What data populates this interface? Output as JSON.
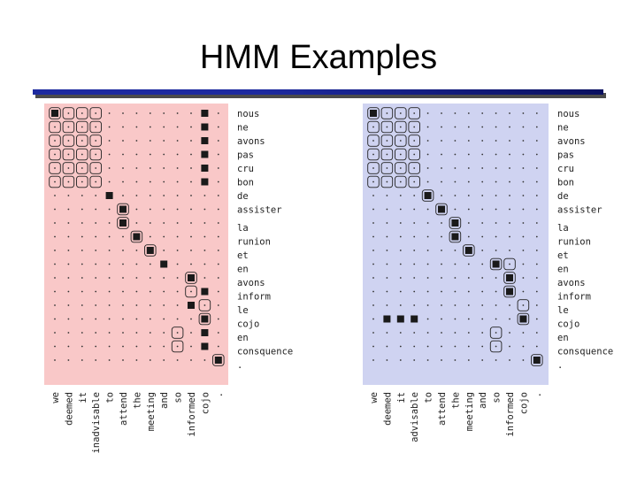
{
  "slide": {
    "title": "HMM Examples"
  },
  "colors": {
    "left_panel_bg": "#f9c8c8",
    "right_panel_bg": "#cfd3f1",
    "cell_fill": "#1a1a1a",
    "rule": "#1d2a9f"
  },
  "alignments": [
    {
      "id": "left",
      "french": [
        "nous",
        "ne",
        "avons",
        "pas",
        "cru",
        "bon",
        "de",
        "assister",
        "la",
        "runion",
        "et",
        "en",
        "avons",
        "inform",
        "le",
        "cojo",
        "en",
        "consquence",
        "."
      ],
      "english": [
        "we",
        "deemed",
        "it",
        "inadvisable",
        "to",
        "attend",
        "the",
        "meeting",
        "and",
        "so",
        "informed",
        "cojo",
        "."
      ],
      "filled": [
        [
          0,
          0
        ],
        [
          0,
          11
        ],
        [
          1,
          11
        ],
        [
          2,
          11
        ],
        [
          3,
          11
        ],
        [
          4,
          11
        ],
        [
          5,
          11
        ],
        [
          6,
          4
        ],
        [
          7,
          5
        ],
        [
          8,
          5
        ],
        [
          9,
          6
        ],
        [
          10,
          7
        ],
        [
          11,
          8
        ],
        [
          12,
          10
        ],
        [
          13,
          11
        ],
        [
          14,
          10
        ],
        [
          15,
          11
        ],
        [
          16,
          11
        ],
        [
          17,
          11
        ],
        [
          18,
          12
        ]
      ],
      "boxed": [
        [
          0,
          0
        ],
        [
          0,
          1
        ],
        [
          0,
          2
        ],
        [
          0,
          3
        ],
        [
          1,
          0
        ],
        [
          1,
          1
        ],
        [
          1,
          2
        ],
        [
          1,
          3
        ],
        [
          2,
          0
        ],
        [
          2,
          1
        ],
        [
          2,
          2
        ],
        [
          2,
          3
        ],
        [
          3,
          0
        ],
        [
          3,
          1
        ],
        [
          3,
          2
        ],
        [
          3,
          3
        ],
        [
          4,
          0
        ],
        [
          4,
          1
        ],
        [
          4,
          2
        ],
        [
          4,
          3
        ],
        [
          5,
          0
        ],
        [
          5,
          1
        ],
        [
          5,
          2
        ],
        [
          5,
          3
        ],
        [
          7,
          5
        ],
        [
          8,
          5
        ],
        [
          9,
          6
        ],
        [
          10,
          7
        ],
        [
          12,
          10
        ],
        [
          13,
          10
        ],
        [
          14,
          11
        ],
        [
          15,
          11
        ],
        [
          16,
          9
        ],
        [
          17,
          9
        ],
        [
          18,
          12
        ]
      ]
    },
    {
      "id": "right",
      "french": [
        "nous",
        "ne",
        "avons",
        "pas",
        "cru",
        "bon",
        "de",
        "assister",
        "la",
        "runion",
        "et",
        "en",
        "avons",
        "inform",
        "le",
        "cojo",
        "en",
        "consquence",
        "."
      ],
      "english": [
        "we",
        "deemed",
        "it",
        "advisable",
        "to",
        "attend",
        "the",
        "meeting",
        "and",
        "so",
        "informed",
        "cojo",
        "."
      ],
      "filled": [
        [
          0,
          0
        ],
        [
          6,
          4
        ],
        [
          7,
          5
        ],
        [
          8,
          6
        ],
        [
          9,
          6
        ],
        [
          10,
          7
        ],
        [
          11,
          9
        ],
        [
          12,
          10
        ],
        [
          13,
          10
        ],
        [
          15,
          1
        ],
        [
          15,
          2
        ],
        [
          15,
          3
        ],
        [
          15,
          11
        ],
        [
          18,
          12
        ]
      ],
      "boxed": [
        [
          0,
          0
        ],
        [
          0,
          1
        ],
        [
          0,
          2
        ],
        [
          0,
          3
        ],
        [
          1,
          0
        ],
        [
          1,
          1
        ],
        [
          1,
          2
        ],
        [
          1,
          3
        ],
        [
          2,
          0
        ],
        [
          2,
          1
        ],
        [
          2,
          2
        ],
        [
          2,
          3
        ],
        [
          3,
          0
        ],
        [
          3,
          1
        ],
        [
          3,
          2
        ],
        [
          3,
          3
        ],
        [
          4,
          0
        ],
        [
          4,
          1
        ],
        [
          4,
          2
        ],
        [
          4,
          3
        ],
        [
          5,
          0
        ],
        [
          5,
          1
        ],
        [
          5,
          2
        ],
        [
          5,
          3
        ],
        [
          6,
          4
        ],
        [
          7,
          5
        ],
        [
          8,
          6
        ],
        [
          9,
          6
        ],
        [
          10,
          7
        ],
        [
          11,
          9
        ],
        [
          11,
          10
        ],
        [
          12,
          10
        ],
        [
          13,
          10
        ],
        [
          14,
          11
        ],
        [
          15,
          11
        ],
        [
          16,
          9
        ],
        [
          17,
          9
        ],
        [
          18,
          12
        ]
      ]
    }
  ]
}
